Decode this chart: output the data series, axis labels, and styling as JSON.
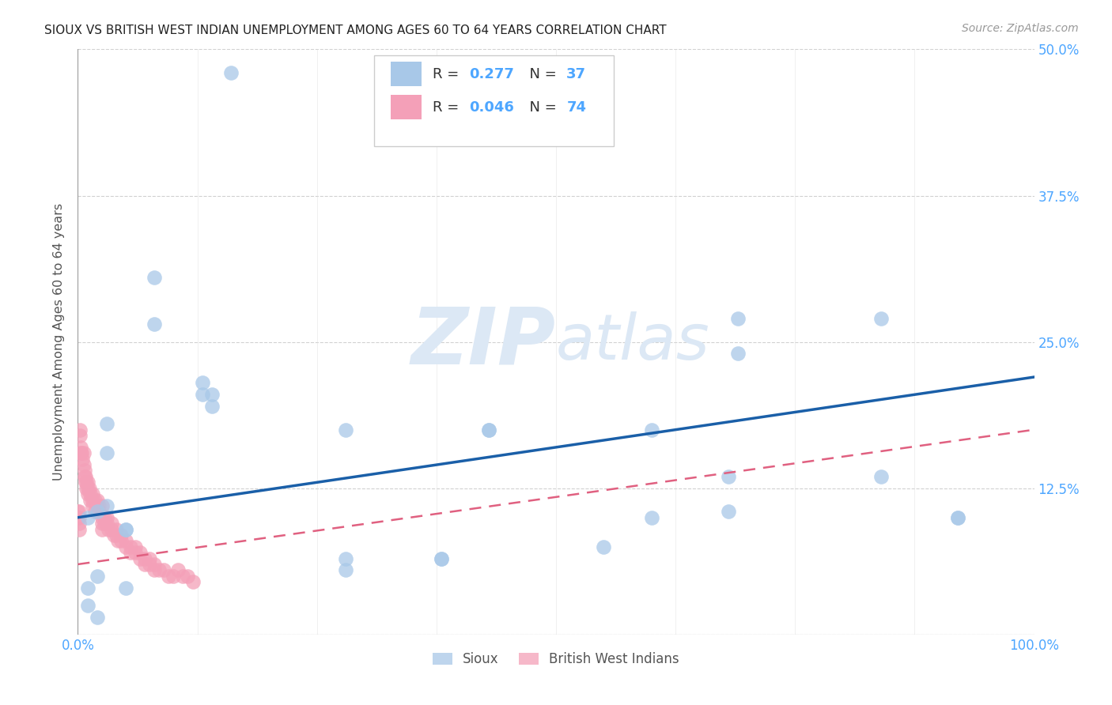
{
  "title": "SIOUX VS BRITISH WEST INDIAN UNEMPLOYMENT AMONG AGES 60 TO 64 YEARS CORRELATION CHART",
  "source": "Source: ZipAtlas.com",
  "ylabel": "Unemployment Among Ages 60 to 64 years",
  "watermark": "ZIPatlas",
  "sioux_color": "#a8c8e8",
  "bwi_color": "#f4a0b8",
  "sioux_line_color": "#1a5fa8",
  "bwi_line_color": "#e06080",
  "background_color": "#ffffff",
  "grid_color": "#cccccc",
  "R_sioux": 0.277,
  "N_sioux": 37,
  "R_bwi": 0.046,
  "N_bwi": 74,
  "xlim": [
    0.0,
    1.0
  ],
  "ylim": [
    0.0,
    0.5
  ],
  "xticks": [
    0.0,
    0.125,
    0.25,
    0.375,
    0.5,
    0.625,
    0.75,
    0.875,
    1.0
  ],
  "xticklabels": [
    "0.0%",
    "",
    "",
    "",
    "",
    "",
    "",
    "",
    "100.0%"
  ],
  "yticks": [
    0.0,
    0.125,
    0.25,
    0.375,
    0.5
  ],
  "yticklabels": [
    "",
    "12.5%",
    "25.0%",
    "37.5%",
    "50.0%"
  ],
  "sioux_x": [
    0.16,
    0.08,
    0.08,
    0.13,
    0.13,
    0.14,
    0.14,
    0.03,
    0.03,
    0.05,
    0.43,
    0.55,
    0.6,
    0.84,
    0.92,
    0.28,
    0.38,
    0.05,
    0.01,
    0.01,
    0.02,
    0.02,
    0.68,
    0.92,
    0.69,
    0.69,
    0.28,
    0.28,
    0.38,
    0.05,
    0.02,
    0.6,
    0.84,
    0.43,
    0.68,
    0.01,
    0.03
  ],
  "sioux_y": [
    0.48,
    0.305,
    0.265,
    0.215,
    0.205,
    0.205,
    0.195,
    0.18,
    0.155,
    0.09,
    0.175,
    0.075,
    0.175,
    0.27,
    0.1,
    0.175,
    0.065,
    0.04,
    0.1,
    0.04,
    0.105,
    0.015,
    0.135,
    0.1,
    0.27,
    0.24,
    0.065,
    0.055,
    0.065,
    0.09,
    0.05,
    0.1,
    0.135,
    0.175,
    0.105,
    0.025,
    0.11
  ],
  "bwi_x": [
    0.002,
    0.002,
    0.003,
    0.003,
    0.004,
    0.005,
    0.006,
    0.006,
    0.007,
    0.007,
    0.008,
    0.008,
    0.009,
    0.009,
    0.01,
    0.01,
    0.01,
    0.012,
    0.013,
    0.013,
    0.015,
    0.015,
    0.015,
    0.018,
    0.018,
    0.02,
    0.02,
    0.022,
    0.022,
    0.025,
    0.025,
    0.025,
    0.025,
    0.028,
    0.028,
    0.03,
    0.03,
    0.032,
    0.035,
    0.035,
    0.038,
    0.04,
    0.04,
    0.042,
    0.045,
    0.045,
    0.05,
    0.05,
    0.055,
    0.055,
    0.06,
    0.06,
    0.065,
    0.065,
    0.07,
    0.07,
    0.075,
    0.075,
    0.08,
    0.08,
    0.085,
    0.09,
    0.095,
    0.1,
    0.105,
    0.11,
    0.115,
    0.12,
    0.0,
    0.0,
    0.001,
    0.001,
    0.001,
    0.001
  ],
  "bwi_y": [
    0.17,
    0.175,
    0.16,
    0.155,
    0.155,
    0.15,
    0.155,
    0.145,
    0.14,
    0.135,
    0.135,
    0.13,
    0.13,
    0.125,
    0.13,
    0.125,
    0.12,
    0.125,
    0.12,
    0.115,
    0.12,
    0.115,
    0.11,
    0.115,
    0.105,
    0.115,
    0.11,
    0.11,
    0.105,
    0.11,
    0.1,
    0.095,
    0.09,
    0.1,
    0.095,
    0.1,
    0.095,
    0.09,
    0.095,
    0.09,
    0.085,
    0.09,
    0.085,
    0.08,
    0.085,
    0.08,
    0.08,
    0.075,
    0.075,
    0.07,
    0.075,
    0.07,
    0.07,
    0.065,
    0.065,
    0.06,
    0.065,
    0.06,
    0.06,
    0.055,
    0.055,
    0.055,
    0.05,
    0.05,
    0.055,
    0.05,
    0.05,
    0.045,
    0.105,
    0.1,
    0.105,
    0.1,
    0.095,
    0.09
  ]
}
